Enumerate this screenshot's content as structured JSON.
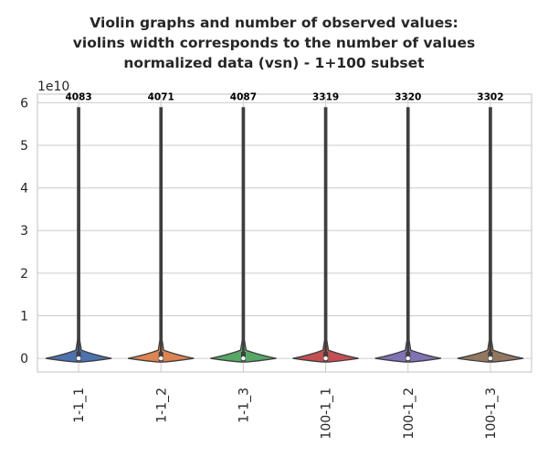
{
  "chart_data": {
    "type": "violin",
    "title_lines": [
      "Violin graphs and number of observed values:",
      "violins width corresponds to the number of values",
      "normalized data (vsn) - 1+100 subset"
    ],
    "xlabel": "",
    "ylabel": "",
    "y_exponent_label": "1e10",
    "y_scale_factor": 10000000000,
    "ylim": [
      -3200000000.0,
      62000000000.0
    ],
    "y_ticks": [
      0,
      10000000000.0,
      20000000000.0,
      30000000000.0,
      40000000000.0,
      50000000000.0,
      60000000000.0
    ],
    "y_tick_labels": [
      "0",
      "1",
      "2",
      "3",
      "4",
      "5",
      "6"
    ],
    "grid": true,
    "categories": [
      "1-1_1",
      "1-1_2",
      "1-1_3",
      "100-1_1",
      "100-1_2",
      "100-1_3"
    ],
    "counts": [
      "4083",
      "4071",
      "4087",
      "3319",
      "3320",
      "3302"
    ],
    "colors": [
      "#4c72b0",
      "#dd8452",
      "#55a868",
      "#c44e52",
      "#8172b3",
      "#937860"
    ],
    "max_values": [
      58800000000.0,
      58800000000.0,
      58800000000.0,
      58800000000.0,
      58800000000.0,
      58800000000.0
    ],
    "median_values": [
      0,
      0,
      0,
      0,
      0,
      0
    ]
  }
}
